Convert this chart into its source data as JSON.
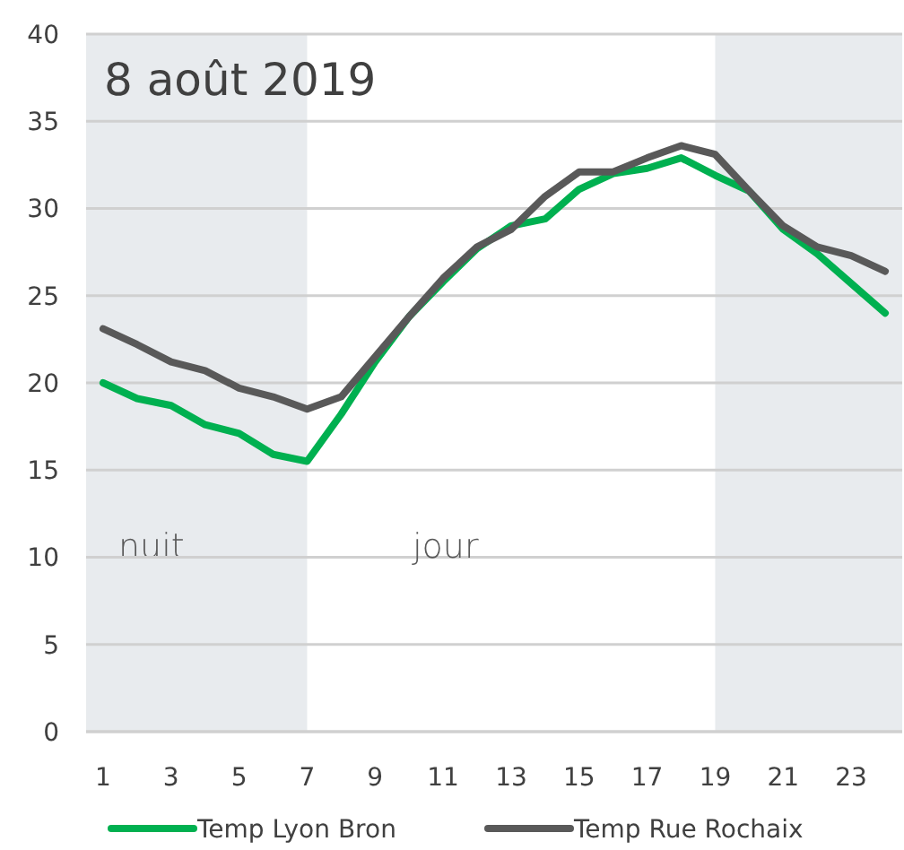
{
  "chart_data": {
    "type": "line",
    "title": "8 août 2019",
    "x": [
      1,
      2,
      3,
      4,
      5,
      6,
      7,
      8,
      9,
      10,
      11,
      12,
      13,
      14,
      15,
      16,
      17,
      18,
      19,
      20,
      21,
      22,
      23,
      24
    ],
    "series": [
      {
        "name": "Temp Lyon Bron",
        "color": "#00b050",
        "values": [
          20,
          19.1,
          18.7,
          17.6,
          17.1,
          15.9,
          15.5,
          18.2,
          21.2,
          23.8,
          25.8,
          27.7,
          29,
          29.4,
          31.1,
          32,
          32.3,
          32.9,
          31.9,
          31,
          28.8,
          27.4,
          25.7,
          24
        ]
      },
      {
        "name": "Temp Rue Rochaix",
        "color": "#595959",
        "values": [
          23.1,
          22.2,
          21.2,
          20.7,
          19.7,
          19.2,
          18.5,
          19.2,
          21.5,
          23.8,
          26,
          27.8,
          28.8,
          30.7,
          32.1,
          32.1,
          32.9,
          33.6,
          33.1,
          31,
          29,
          27.8,
          27.3,
          26.4
        ]
      }
    ],
    "xlim": [
      0.5,
      24.5
    ],
    "xticks": [
      1,
      3,
      5,
      7,
      9,
      11,
      13,
      15,
      17,
      19,
      21,
      23
    ],
    "ylim": [
      0,
      40
    ],
    "yticks": [
      0,
      5,
      10,
      15,
      20,
      25,
      30,
      35,
      40
    ],
    "grid": "y",
    "legend": "bottom",
    "marker": "none",
    "line_style": "solid",
    "bands": [
      {
        "axis": "x",
        "from": 0.5,
        "to": 7,
        "label": "nuit",
        "color": "#e8ebee"
      },
      {
        "axis": "x",
        "from": 19,
        "to": 24.5,
        "color": "#e8ebee"
      }
    ],
    "annotations": [
      "jour"
    ]
  }
}
